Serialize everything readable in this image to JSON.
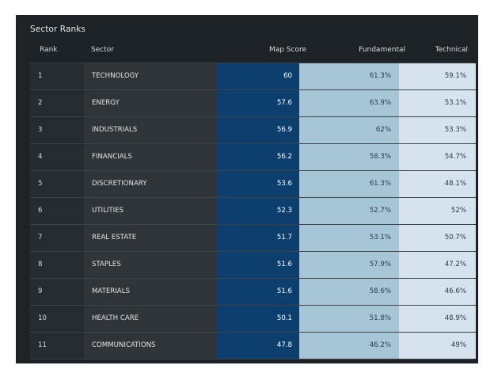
{
  "panel": {
    "title": "Sector Ranks"
  },
  "table": {
    "headers": {
      "rank": "Rank",
      "sector": "Sector",
      "map_score": "Map Score",
      "fundamental": "Fundamental",
      "technical": "Technical"
    },
    "rows": [
      {
        "rank": "1",
        "sector": "TECHNOLOGY",
        "map_score": "60",
        "fundamental": "61.3%",
        "technical": "59.1%"
      },
      {
        "rank": "2",
        "sector": "ENERGY",
        "map_score": "57.6",
        "fundamental": "63.9%",
        "technical": "53.1%"
      },
      {
        "rank": "3",
        "sector": "INDUSTRIALS",
        "map_score": "56.9",
        "fundamental": "62%",
        "technical": "53.3%"
      },
      {
        "rank": "4",
        "sector": "FINANCIALS",
        "map_score": "56.2",
        "fundamental": "58.3%",
        "technical": "54.7%"
      },
      {
        "rank": "5",
        "sector": "DISCRETIONARY",
        "map_score": "53.6",
        "fundamental": "61.3%",
        "technical": "48.1%"
      },
      {
        "rank": "6",
        "sector": "UTILITIES",
        "map_score": "52.3",
        "fundamental": "52.7%",
        "technical": "52%"
      },
      {
        "rank": "7",
        "sector": "REAL ESTATE",
        "map_score": "51.7",
        "fundamental": "53.1%",
        "technical": "50.7%"
      },
      {
        "rank": "8",
        "sector": "STAPLES",
        "map_score": "51.6",
        "fundamental": "57.9%",
        "technical": "47.2%"
      },
      {
        "rank": "9",
        "sector": "MATERIALS",
        "map_score": "51.6",
        "fundamental": "58.6%",
        "technical": "46.6%"
      },
      {
        "rank": "10",
        "sector": "HEALTH CARE",
        "map_score": "50.1",
        "fundamental": "51.8%",
        "technical": "48.9%"
      },
      {
        "rank": "11",
        "sector": "COMMUNICATIONS",
        "map_score": "47.8",
        "fundamental": "46.2%",
        "technical": "49%"
      }
    ]
  },
  "colors": {
    "panel_bg": "#1d2226",
    "map_score_col": "#0c3f6d",
    "fundamental_col": "#a6c5d6",
    "technical_col": "#d6e3ee"
  }
}
